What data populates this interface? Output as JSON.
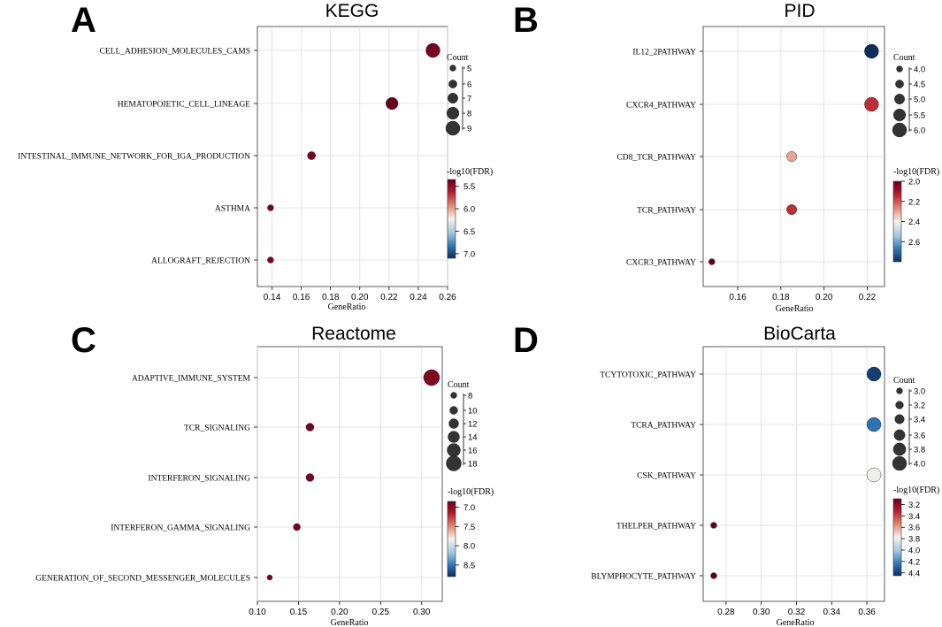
{
  "chart_data": [
    {
      "panel": "A",
      "type": "scatter",
      "title": "KEGG",
      "xlabel": "GeneRatio",
      "xlim": [
        0.13,
        0.26
      ],
      "xticks": [
        0.14,
        0.16,
        0.18,
        0.2,
        0.22,
        0.24,
        0.26
      ],
      "xtick_labels": [
        "0.14",
        "0.16",
        "0.18",
        "0.20",
        "0.22",
        "0.24",
        "0.26"
      ],
      "categories": [
        "CELL_ADHESION_MOLECULES_CAMS",
        "HEMATOPOIETIC_CELL_LINEAGE",
        "INTESTINAL_IMMUNE_NETWORK_FOR_IGA_PRODUCTION",
        "ASTHMA",
        "ALLOGRAFT_REJECTION"
      ],
      "gene_ratio": [
        0.25,
        0.222,
        0.167,
        0.139,
        0.139
      ],
      "count": [
        9,
        8,
        6,
        5,
        5
      ],
      "neg_log10_fdr": [
        5.4,
        5.35,
        5.4,
        5.4,
        5.4
      ],
      "size_legend": {
        "title": "Count",
        "values": [
          5,
          6,
          7,
          8,
          9
        ],
        "labels": [
          "5",
          "6",
          "7",
          "8",
          "9"
        ]
      },
      "color_legend": {
        "title": "-log10(FDR)",
        "range": [
          5.35,
          7.1
        ],
        "ticks": [
          5.5,
          6.0,
          6.5,
          7.0
        ],
        "labels": [
          "5.5",
          "6.0",
          "6.5",
          "7.0"
        ]
      }
    },
    {
      "panel": "B",
      "type": "scatter",
      "title": "PID",
      "xlabel": "GeneRatio",
      "xlim": [
        0.144,
        0.228
      ],
      "xticks": [
        0.16,
        0.18,
        0.2,
        0.22
      ],
      "xtick_labels": [
        "0.16",
        "0.18",
        "0.20",
        "0.22"
      ],
      "categories": [
        "IL12_2PATHWAY",
        "CXCR4_PATHWAY",
        "CD8_TCR_PATHWAY",
        "TCR_PATHWAY",
        "CXCR3_PATHWAY"
      ],
      "gene_ratio": [
        0.222,
        0.222,
        0.185,
        0.185,
        0.148
      ],
      "count": [
        6,
        6,
        5,
        5,
        4
      ],
      "neg_log10_fdr": [
        2.8,
        2.15,
        2.3,
        2.15,
        2.0
      ],
      "size_legend": {
        "title": "Count",
        "values": [
          4.0,
          4.5,
          5.0,
          5.5,
          6.0
        ],
        "labels": [
          "4.0",
          "4.5",
          "5.0",
          "5.5",
          "6.0"
        ]
      },
      "color_legend": {
        "title": "-log10(FDR)",
        "range": [
          2.0,
          2.8
        ],
        "ticks": [
          2.0,
          2.2,
          2.4,
          2.6
        ],
        "labels": [
          "2.0",
          "2.2",
          "2.4",
          "2.6"
        ]
      }
    },
    {
      "panel": "C",
      "type": "scatter",
      "title": "Reactome",
      "xlabel": "GeneRatio",
      "xlim": [
        0.1,
        0.325
      ],
      "xticks": [
        0.1,
        0.15,
        0.2,
        0.25,
        0.3
      ],
      "xtick_labels": [
        "0.10",
        "0.15",
        "0.20",
        "0.25",
        "0.30"
      ],
      "categories": [
        "ADAPTIVE_IMMUNE_SYSTEM",
        "TCR_SIGNALING",
        "INTERFERON_SIGNALING",
        "INTERFERON_GAMMA_SIGNALING",
        "GENERATION_OF_SECOND_MESSENGER_MOLECULES"
      ],
      "gene_ratio": [
        0.312,
        0.164,
        0.164,
        0.148,
        0.115
      ],
      "count": [
        19,
        10,
        10,
        9,
        7
      ],
      "neg_log10_fdr": [
        6.95,
        6.9,
        6.9,
        6.9,
        6.9
      ],
      "size_legend": {
        "title": "Count",
        "values": [
          8,
          10,
          12,
          14,
          16,
          18
        ],
        "labels": [
          "8",
          "10",
          "12",
          "14",
          "16",
          "18"
        ]
      },
      "color_legend": {
        "title": "-log10(FDR)",
        "range": [
          6.85,
          8.8
        ],
        "ticks": [
          7.0,
          7.5,
          8.0,
          8.5
        ],
        "labels": [
          "7.0",
          "7.5",
          "8.0",
          "8.5"
        ]
      }
    },
    {
      "panel": "D",
      "type": "scatter",
      "title": "BioCarta",
      "xlabel": "GeneRatio",
      "xlim": [
        0.267,
        0.37
      ],
      "xticks": [
        0.28,
        0.3,
        0.32,
        0.34,
        0.36
      ],
      "xtick_labels": [
        "0.28",
        "0.30",
        "0.32",
        "0.34",
        "0.36"
      ],
      "categories": [
        "TCYTOTOXIC_PATHWAY",
        "TCRA_PATHWAY",
        "CSK_PATHWAY",
        "THELPER_PATHWAY",
        "BLYMPHOCYTE_PATHWAY"
      ],
      "gene_ratio": [
        0.364,
        0.364,
        0.364,
        0.273,
        0.273
      ],
      "count": [
        4,
        4,
        4,
        3,
        3
      ],
      "neg_log10_fdr": [
        4.4,
        4.25,
        3.8,
        3.1,
        3.1
      ],
      "size_legend": {
        "title": "Count",
        "values": [
          3.0,
          3.2,
          3.4,
          3.6,
          3.8,
          4.0
        ],
        "labels": [
          "3.0",
          "3.2",
          "3.4",
          "3.6",
          "3.8",
          "4.0"
        ]
      },
      "color_legend": {
        "title": "-log10(FDR)",
        "range": [
          3.1,
          4.45
        ],
        "ticks": [
          3.2,
          3.4,
          3.6,
          3.8,
          4.0,
          4.2,
          4.4
        ],
        "labels": [
          "3.2",
          "3.4",
          "3.6",
          "3.8",
          "4.0",
          "4.2",
          "4.4"
        ]
      }
    }
  ]
}
